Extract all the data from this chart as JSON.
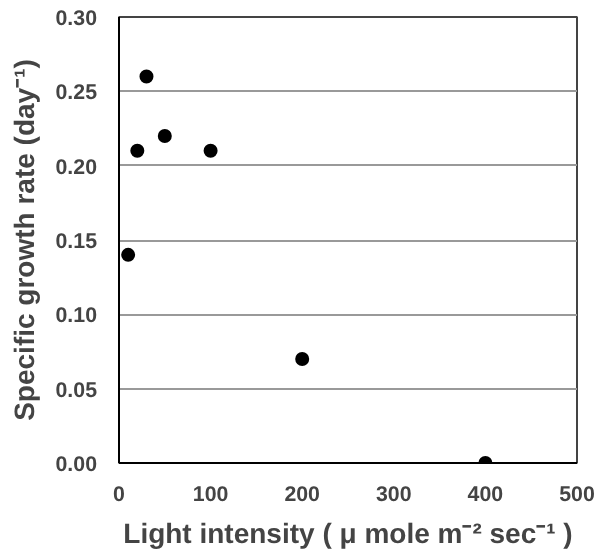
{
  "chart_data": {
    "type": "scatter",
    "xlabel": "Light intensity ( μ mole m⁻² sec⁻¹ )",
    "ylabel": "Specific growth rate (day⁻¹)",
    "x": [
      10,
      20,
      30,
      50,
      100,
      200,
      400
    ],
    "series": [
      {
        "color": "#000000",
        "values": [
          0.14,
          0.21,
          0.26,
          0.22,
          0.21,
          0.07,
          0.0
        ]
      }
    ],
    "xlim": [
      0,
      500
    ],
    "ylim": [
      0,
      0.3
    ],
    "xticks": [
      0,
      100,
      200,
      300,
      400,
      500
    ],
    "yticks": [
      {
        "value": 0,
        "label": "0.00"
      },
      {
        "value": 0.05,
        "label": "0.05"
      },
      {
        "value": 0.1,
        "label": "0.10"
      },
      {
        "value": 0.15,
        "label": "0.15"
      },
      {
        "value": 0.2,
        "label": "0.20"
      },
      {
        "value": 0.25,
        "label": "0.25"
      },
      {
        "value": 0.3,
        "label": "0.30"
      }
    ],
    "grid": "y",
    "marker": "circle"
  }
}
